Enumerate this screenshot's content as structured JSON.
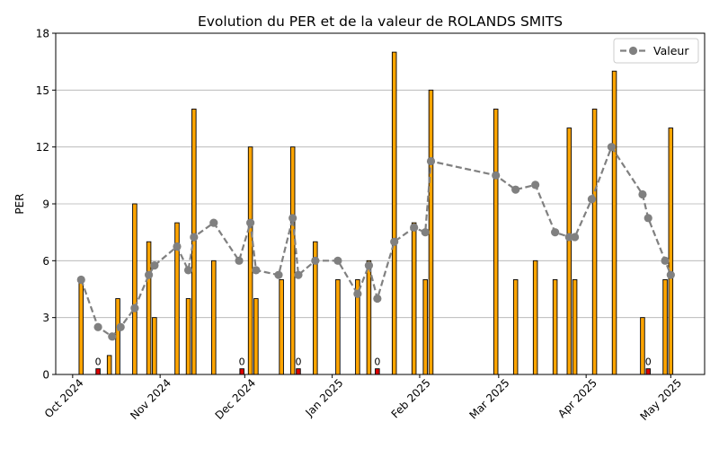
{
  "chart_data": {
    "type": "bar",
    "title": "Evolution du PER et de la valeur de ROLANDS SMITS",
    "xlabel": "",
    "ylabel": "PER",
    "ylim": [
      0,
      18
    ],
    "xlim": [
      "2024-09-25",
      "2025-05-13"
    ],
    "yticks": [
      0,
      3,
      6,
      9,
      12,
      15,
      18
    ],
    "xticks": [
      {
        "date": "2024-10-01",
        "label": "Oct 2024"
      },
      {
        "date": "2024-11-01",
        "label": "Nov 2024"
      },
      {
        "date": "2024-12-01",
        "label": "Dec 2024"
      },
      {
        "date": "2025-01-01",
        "label": "Jan 2025"
      },
      {
        "date": "2025-02-01",
        "label": "Feb 2025"
      },
      {
        "date": "2025-03-01",
        "label": "Mar 2025"
      },
      {
        "date": "2025-04-01",
        "label": "Apr 2025"
      },
      {
        "date": "2025-05-01",
        "label": "May 2025"
      }
    ],
    "grid": "y",
    "colors": {
      "bar": "#ffa500",
      "zero_bar": "#dd0000",
      "edge": "#000000",
      "line": "#808080"
    },
    "series": [
      {
        "kind": "bar",
        "name": "",
        "points": [
          {
            "x": "2024-10-04",
            "y": 5
          },
          {
            "x": "2024-10-10",
            "y": 0.3,
            "label": "0"
          },
          {
            "x": "2024-10-14",
            "y": 1
          },
          {
            "x": "2024-10-17",
            "y": 4
          },
          {
            "x": "2024-10-23",
            "y": 9
          },
          {
            "x": "2024-10-28",
            "y": 7
          },
          {
            "x": "2024-10-30",
            "y": 3
          },
          {
            "x": "2024-11-07",
            "y": 8
          },
          {
            "x": "2024-11-11",
            "y": 4
          },
          {
            "x": "2024-11-13",
            "y": 14
          },
          {
            "x": "2024-11-20",
            "y": 6
          },
          {
            "x": "2024-11-30",
            "y": 0.3,
            "label": "0"
          },
          {
            "x": "2024-12-03",
            "y": 12
          },
          {
            "x": "2024-12-05",
            "y": 4
          },
          {
            "x": "2024-12-14",
            "y": 5
          },
          {
            "x": "2024-12-18",
            "y": 12
          },
          {
            "x": "2024-12-20",
            "y": 0.3,
            "label": "0"
          },
          {
            "x": "2024-12-26",
            "y": 7
          },
          {
            "x": "2025-01-03",
            "y": 5
          },
          {
            "x": "2025-01-10",
            "y": 5
          },
          {
            "x": "2025-01-14",
            "y": 6
          },
          {
            "x": "2025-01-17",
            "y": 0.3,
            "label": "0"
          },
          {
            "x": "2025-01-23",
            "y": 17
          },
          {
            "x": "2025-01-30",
            "y": 8
          },
          {
            "x": "2025-02-03",
            "y": 5
          },
          {
            "x": "2025-02-05",
            "y": 15
          },
          {
            "x": "2025-02-28",
            "y": 14
          },
          {
            "x": "2025-03-07",
            "y": 5
          },
          {
            "x": "2025-03-14",
            "y": 6
          },
          {
            "x": "2025-03-21",
            "y": 5
          },
          {
            "x": "2025-03-26",
            "y": 13
          },
          {
            "x": "2025-03-28",
            "y": 5
          },
          {
            "x": "2025-04-04",
            "y": 14
          },
          {
            "x": "2025-04-11",
            "y": 16
          },
          {
            "x": "2025-04-21",
            "y": 3
          },
          {
            "x": "2025-04-23",
            "y": 0.3,
            "label": "0"
          },
          {
            "x": "2025-04-29",
            "y": 5
          },
          {
            "x": "2025-05-01",
            "y": 13
          }
        ]
      },
      {
        "kind": "line",
        "name": "Valeur",
        "points": [
          {
            "x": "2024-10-04",
            "y": 5.0
          },
          {
            "x": "2024-10-10",
            "y": 2.5
          },
          {
            "x": "2024-10-15",
            "y": 2.0
          },
          {
            "x": "2024-10-18",
            "y": 2.5
          },
          {
            "x": "2024-10-23",
            "y": 3.5
          },
          {
            "x": "2024-10-28",
            "y": 5.25
          },
          {
            "x": "2024-10-30",
            "y": 5.75
          },
          {
            "x": "2024-11-07",
            "y": 6.75
          },
          {
            "x": "2024-11-11",
            "y": 5.5
          },
          {
            "x": "2024-11-13",
            "y": 7.25
          },
          {
            "x": "2024-11-20",
            "y": 8.0
          },
          {
            "x": "2024-11-29",
            "y": 6.0
          },
          {
            "x": "2024-12-03",
            "y": 8.0
          },
          {
            "x": "2024-12-05",
            "y": 5.5
          },
          {
            "x": "2024-12-13",
            "y": 5.25
          },
          {
            "x": "2024-12-18",
            "y": 8.25
          },
          {
            "x": "2024-12-20",
            "y": 5.25
          },
          {
            "x": "2024-12-26",
            "y": 6.0
          },
          {
            "x": "2025-01-03",
            "y": 6.0
          },
          {
            "x": "2025-01-10",
            "y": 4.25
          },
          {
            "x": "2025-01-14",
            "y": 5.75
          },
          {
            "x": "2025-01-17",
            "y": 4.0
          },
          {
            "x": "2025-01-23",
            "y": 7.0
          },
          {
            "x": "2025-01-30",
            "y": 7.75
          },
          {
            "x": "2025-02-03",
            "y": 7.5
          },
          {
            "x": "2025-02-05",
            "y": 11.25
          },
          {
            "x": "2025-02-28",
            "y": 10.5
          },
          {
            "x": "2025-03-07",
            "y": 9.75
          },
          {
            "x": "2025-03-14",
            "y": 10.0
          },
          {
            "x": "2025-03-21",
            "y": 7.5
          },
          {
            "x": "2025-03-26",
            "y": 7.25
          },
          {
            "x": "2025-03-28",
            "y": 7.25
          },
          {
            "x": "2025-04-03",
            "y": 9.25
          },
          {
            "x": "2025-04-10",
            "y": 12.0
          },
          {
            "x": "2025-04-21",
            "y": 9.5
          },
          {
            "x": "2025-04-23",
            "y": 8.25
          },
          {
            "x": "2025-04-29",
            "y": 6.0
          },
          {
            "x": "2025-05-01",
            "y": 5.25
          }
        ]
      }
    ],
    "legend": {
      "position": "top-right",
      "entries": [
        "Valeur"
      ]
    }
  }
}
